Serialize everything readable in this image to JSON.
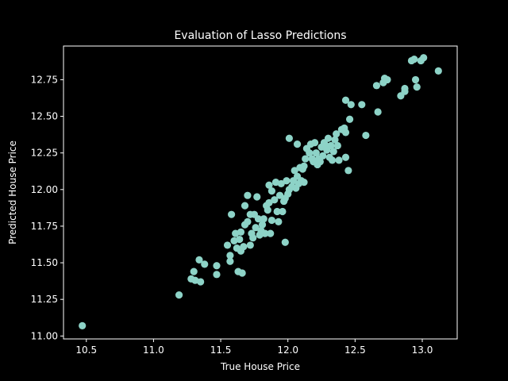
{
  "chart_data": {
    "type": "scatter",
    "title": "Evaluation of Lasso Predictions",
    "xlabel": "True House Price",
    "ylabel": "Predicted House Price",
    "xlim": [
      10.33,
      13.26
    ],
    "ylim": [
      10.98,
      12.98
    ],
    "xticks": [
      10.5,
      11.0,
      11.5,
      12.0,
      12.5,
      13.0
    ],
    "yticks": [
      11.0,
      11.25,
      11.5,
      11.75,
      12.0,
      12.25,
      12.5,
      12.75
    ],
    "xtick_labels": [
      "10.5",
      "11.0",
      "11.5",
      "12.0",
      "12.5",
      "13.0"
    ],
    "ytick_labels": [
      "11.00",
      "11.25",
      "11.50",
      "11.75",
      "12.00",
      "12.25",
      "12.50",
      "12.75"
    ],
    "grid": false,
    "point_color": "#8dd3c7",
    "axes_color": "#ffffff",
    "background": "#000000",
    "points": [
      [
        10.47,
        11.07
      ],
      [
        11.19,
        11.28
      ],
      [
        11.28,
        11.39
      ],
      [
        11.3,
        11.44
      ],
      [
        11.31,
        11.38
      ],
      [
        11.35,
        11.37
      ],
      [
        11.34,
        11.52
      ],
      [
        11.38,
        11.49
      ],
      [
        11.47,
        11.42
      ],
      [
        11.47,
        11.48
      ],
      [
        11.55,
        11.62
      ],
      [
        11.57,
        11.55
      ],
      [
        11.57,
        11.51
      ],
      [
        11.58,
        11.83
      ],
      [
        11.6,
        11.65
      ],
      [
        11.61,
        11.7
      ],
      [
        11.62,
        11.6
      ],
      [
        11.63,
        11.44
      ],
      [
        11.64,
        11.66
      ],
      [
        11.65,
        11.58
      ],
      [
        11.65,
        11.71
      ],
      [
        11.66,
        11.43
      ],
      [
        11.67,
        11.61
      ],
      [
        11.68,
        11.76
      ],
      [
        11.68,
        11.89
      ],
      [
        11.7,
        11.78
      ],
      [
        11.7,
        11.96
      ],
      [
        11.72,
        11.83
      ],
      [
        11.72,
        11.62
      ],
      [
        11.73,
        11.7
      ],
      [
        11.74,
        11.67
      ],
      [
        11.75,
        11.83
      ],
      [
        11.76,
        11.74
      ],
      [
        11.77,
        11.95
      ],
      [
        11.78,
        11.8
      ],
      [
        11.79,
        11.69
      ],
      [
        11.8,
        11.72
      ],
      [
        11.81,
        11.76
      ],
      [
        11.82,
        11.8
      ],
      [
        11.83,
        11.7
      ],
      [
        11.84,
        11.89
      ],
      [
        11.85,
        11.86
      ],
      [
        11.86,
        11.91
      ],
      [
        11.86,
        12.03
      ],
      [
        11.87,
        11.7
      ],
      [
        11.88,
        11.79
      ],
      [
        11.88,
        11.99
      ],
      [
        11.9,
        11.93
      ],
      [
        11.91,
        12.05
      ],
      [
        11.92,
        11.85
      ],
      [
        11.93,
        11.78
      ],
      [
        11.94,
        11.96
      ],
      [
        11.95,
        12.04
      ],
      [
        11.96,
        11.85
      ],
      [
        11.97,
        11.92
      ],
      [
        11.98,
        11.64
      ],
      [
        11.98,
        11.94
      ],
      [
        11.99,
        12.06
      ],
      [
        12.0,
        11.97
      ],
      [
        12.01,
        12.35
      ],
      [
        12.01,
        12.0
      ],
      [
        12.03,
        12.02
      ],
      [
        12.04,
        12.06
      ],
      [
        12.05,
        12.13
      ],
      [
        12.06,
        12.01
      ],
      [
        12.07,
        12.09
      ],
      [
        12.07,
        12.31
      ],
      [
        12.08,
        12.04
      ],
      [
        12.09,
        12.15
      ],
      [
        12.1,
        12.06
      ],
      [
        12.11,
        12.14
      ],
      [
        12.12,
        12.16
      ],
      [
        12.12,
        12.05
      ],
      [
        12.13,
        12.21
      ],
      [
        12.14,
        12.28
      ],
      [
        12.16,
        12.25
      ],
      [
        12.17,
        12.31
      ],
      [
        12.18,
        12.21
      ],
      [
        12.19,
        12.19
      ],
      [
        12.2,
        12.32
      ],
      [
        12.21,
        12.25
      ],
      [
        12.22,
        12.17
      ],
      [
        12.23,
        12.21
      ],
      [
        12.24,
        12.19
      ],
      [
        12.25,
        12.29
      ],
      [
        12.26,
        12.23
      ],
      [
        12.27,
        12.32
      ],
      [
        12.28,
        12.3
      ],
      [
        12.29,
        12.27
      ],
      [
        12.3,
        12.35
      ],
      [
        12.31,
        12.22
      ],
      [
        12.32,
        12.3
      ],
      [
        12.33,
        12.2
      ],
      [
        12.34,
        12.26
      ],
      [
        12.35,
        12.34
      ],
      [
        12.36,
        12.38
      ],
      [
        12.37,
        12.3
      ],
      [
        12.38,
        12.2
      ],
      [
        12.4,
        12.41
      ],
      [
        12.42,
        12.42
      ],
      [
        12.43,
        12.39
      ],
      [
        12.43,
        12.61
      ],
      [
        12.43,
        12.22
      ],
      [
        12.45,
        12.13
      ],
      [
        12.46,
        12.48
      ],
      [
        12.47,
        12.58
      ],
      [
        12.55,
        12.58
      ],
      [
        12.58,
        12.37
      ],
      [
        12.66,
        12.71
      ],
      [
        12.67,
        12.53
      ],
      [
        12.71,
        12.73
      ],
      [
        12.72,
        12.76
      ],
      [
        12.74,
        12.75
      ],
      [
        12.84,
        12.64
      ],
      [
        12.87,
        12.67
      ],
      [
        12.87,
        12.69
      ],
      [
        12.92,
        12.88
      ],
      [
        12.94,
        12.89
      ],
      [
        12.95,
        12.75
      ],
      [
        12.96,
        12.7
      ],
      [
        12.99,
        12.88
      ],
      [
        13.01,
        12.9
      ],
      [
        13.12,
        12.81
      ]
    ]
  }
}
